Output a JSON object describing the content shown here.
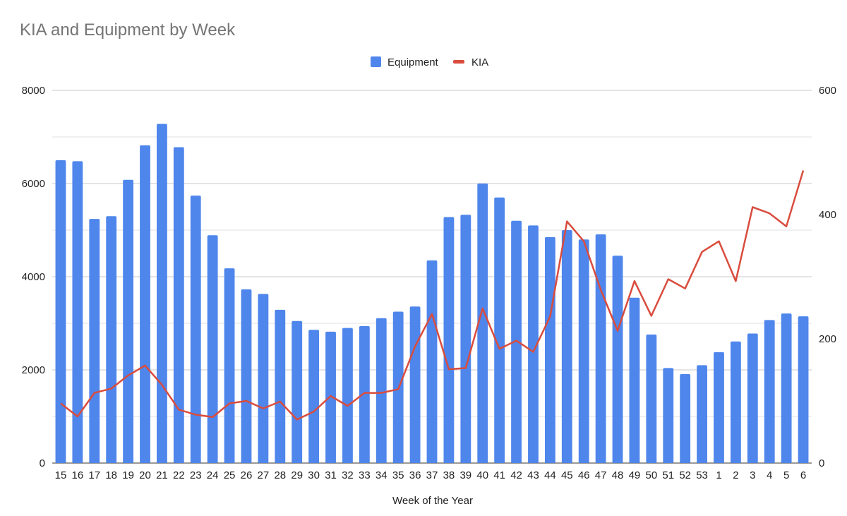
{
  "chart_data": {
    "type": "bar+line",
    "title": "KIA and Equipment by Week",
    "xlabel": "Week of the Year",
    "ylabel_left": "",
    "ylabel_right": "",
    "ylim_left": [
      0,
      8000
    ],
    "ylim_right": [
      0,
      600
    ],
    "yticks_left": [
      "0",
      "2000",
      "4000",
      "6000",
      "8000"
    ],
    "yticks_right": [
      "0",
      "200",
      "400",
      "600"
    ],
    "legend_position": "top",
    "grid": true,
    "categories": [
      "15",
      "16",
      "17",
      "18",
      "19",
      "20",
      "21",
      "22",
      "23",
      "24",
      "25",
      "26",
      "27",
      "28",
      "29",
      "30",
      "31",
      "32",
      "33",
      "34",
      "35",
      "36",
      "37",
      "38",
      "39",
      "40",
      "41",
      "42",
      "43",
      "44",
      "45",
      "46",
      "47",
      "48",
      "49",
      "50",
      "51",
      "52",
      "53",
      "1",
      "2",
      "3",
      "4",
      "5",
      "6"
    ],
    "series": [
      {
        "name": "Equipment",
        "kind": "bar",
        "axis": "left",
        "color": "#4f86ec",
        "values": [
          6500,
          6480,
          5240,
          5300,
          6080,
          6820,
          7280,
          6780,
          5740,
          4890,
          4180,
          3730,
          3630,
          3290,
          3050,
          2860,
          2820,
          2900,
          2940,
          3110,
          3250,
          3360,
          4350,
          5280,
          5330,
          6000,
          5700,
          5200,
          5100,
          4850,
          5000,
          4800,
          4910,
          4450,
          3550,
          2760,
          2040,
          1910,
          2100,
          2380,
          2610,
          2780,
          3070,
          3210,
          3150
        ]
      },
      {
        "name": "KIA",
        "kind": "line",
        "axis": "right",
        "color": "#d94c3d",
        "values": [
          96,
          75,
          113,
          120,
          141,
          157,
          126,
          86,
          78,
          74,
          96,
          100,
          88,
          99,
          70,
          83,
          108,
          92,
          113,
          113,
          119,
          188,
          240,
          151,
          153,
          249,
          184,
          197,
          179,
          236,
          389,
          357,
          279,
          213,
          293,
          237,
          296,
          281,
          340,
          357,
          293,
          412,
          402,
          381,
          471
        ]
      }
    ]
  }
}
